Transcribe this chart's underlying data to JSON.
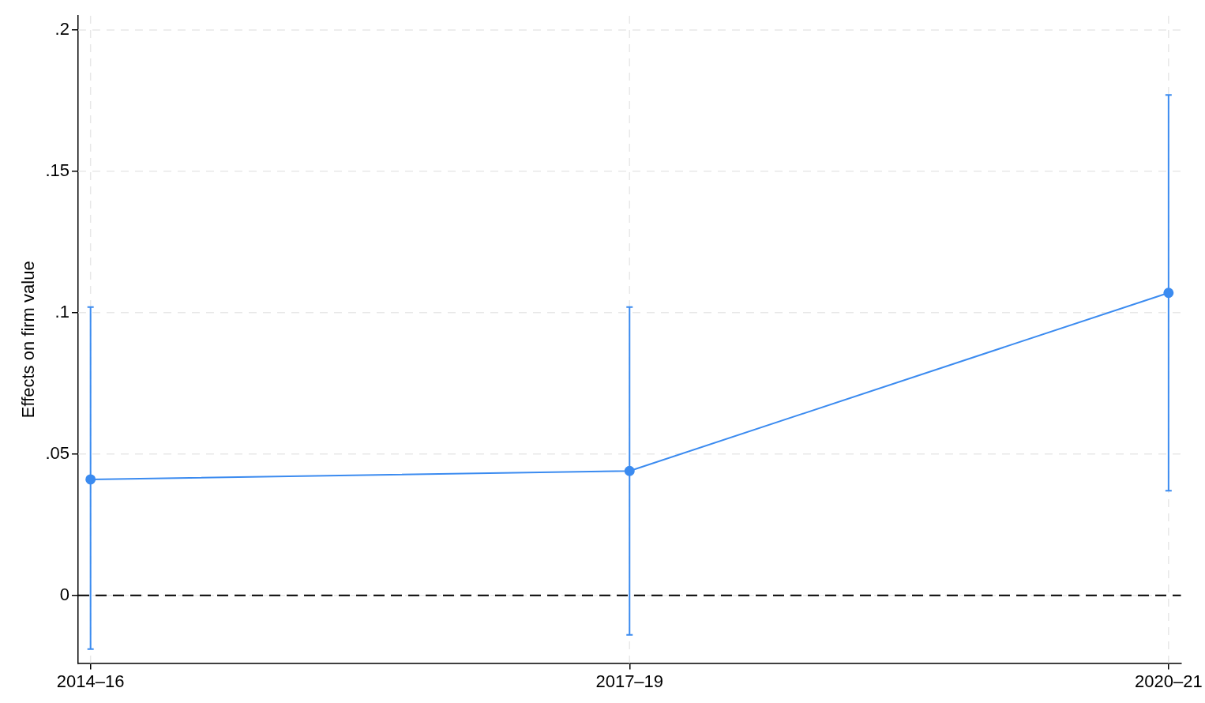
{
  "chart_data": {
    "type": "line",
    "ylabel": "Effects on firm value",
    "categories": [
      "2014–16",
      "2017–19",
      "2020–21"
    ],
    "series": [
      {
        "color": "#3b8bf0",
        "values": [
          0.041,
          0.044,
          0.107
        ],
        "errors": [
          [
            -0.019,
            0.102
          ],
          [
            -0.014,
            0.102
          ],
          [
            0.037,
            0.177
          ]
        ]
      }
    ],
    "ylim": [
      -0.024,
      0.205
    ],
    "yticks": [
      {
        "value": 0,
        "label": "0"
      },
      {
        "value": 0.05,
        "label": ".05"
      },
      {
        "value": 0.1,
        "label": ".1"
      },
      {
        "value": 0.15,
        "label": ".15"
      },
      {
        "value": 0.2,
        "label": ".2"
      }
    ],
    "ref_lines": [
      {
        "axis": "y",
        "value": 0,
        "color": "#000000",
        "line_style": "dashed"
      }
    ],
    "grid": true,
    "legend": false,
    "marker": "circle",
    "line_style": "solid"
  }
}
